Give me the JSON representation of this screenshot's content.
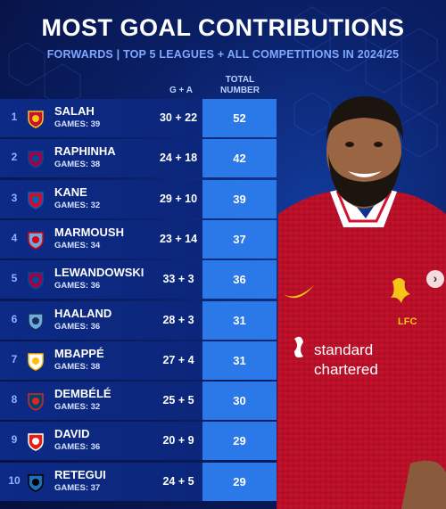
{
  "header": {
    "title": "MOST GOAL CONTRIBUTIONS",
    "subtitle": "FORWARDS | TOP 5 LEAGUES + ALL COMPETITIONS IN 2024/25"
  },
  "columns": {
    "ga": "G + A",
    "total_line1": "TOTAL",
    "total_line2": "NUMBER"
  },
  "rows": [
    {
      "rank": "1",
      "name": "SALAH",
      "games": "GAMES: 39",
      "ga": "30 + 22",
      "total": "52",
      "club": "liverpool-crest-icon"
    },
    {
      "rank": "2",
      "name": "RAPHINHA",
      "games": "GAMES: 38",
      "ga": "24 + 18",
      "total": "42",
      "club": "barcelona-crest-icon"
    },
    {
      "rank": "3",
      "name": "KANE",
      "games": "GAMES: 32",
      "ga": "29 + 10",
      "total": "39",
      "club": "bayern-crest-icon"
    },
    {
      "rank": "4",
      "name": "MARMOUSH",
      "games": "GAMES: 34",
      "ga": "23 + 14",
      "total": "37",
      "club": "frankfurt-mancity-crest-icon"
    },
    {
      "rank": "5",
      "name": "LEWANDOWSKI",
      "games": "GAMES: 36",
      "ga": "33 + 3",
      "total": "36",
      "club": "barcelona-crest-icon"
    },
    {
      "rank": "6",
      "name": "HAALAND",
      "games": "GAMES: 36",
      "ga": "28 + 3",
      "total": "31",
      "club": "mancity-crest-icon"
    },
    {
      "rank": "7",
      "name": "MBAPPÉ",
      "games": "GAMES: 38",
      "ga": "27 + 4",
      "total": "31",
      "club": "realmadrid-crest-icon"
    },
    {
      "rank": "8",
      "name": "DEMBÉLÉ",
      "games": "GAMES: 32",
      "ga": "25 + 5",
      "total": "30",
      "club": "psg-crest-icon"
    },
    {
      "rank": "9",
      "name": "DAVID",
      "games": "GAMES: 36",
      "ga": "20 + 9",
      "total": "29",
      "club": "lille-crest-icon"
    },
    {
      "rank": "10",
      "name": "RETEGUI",
      "games": "GAMES: 37",
      "ga": "24 + 5",
      "total": "29",
      "club": "atalanta-crest-icon"
    }
  ],
  "player_photo": {
    "shirt_sponsor": "standard chartered",
    "shirt_badge": "LFC"
  },
  "colors": {
    "background": "#0a1f66",
    "row": "#0c2a86",
    "total_cell": "#2b79e8",
    "subtitle": "#7fa8ff",
    "shirt": "#c8102e"
  }
}
